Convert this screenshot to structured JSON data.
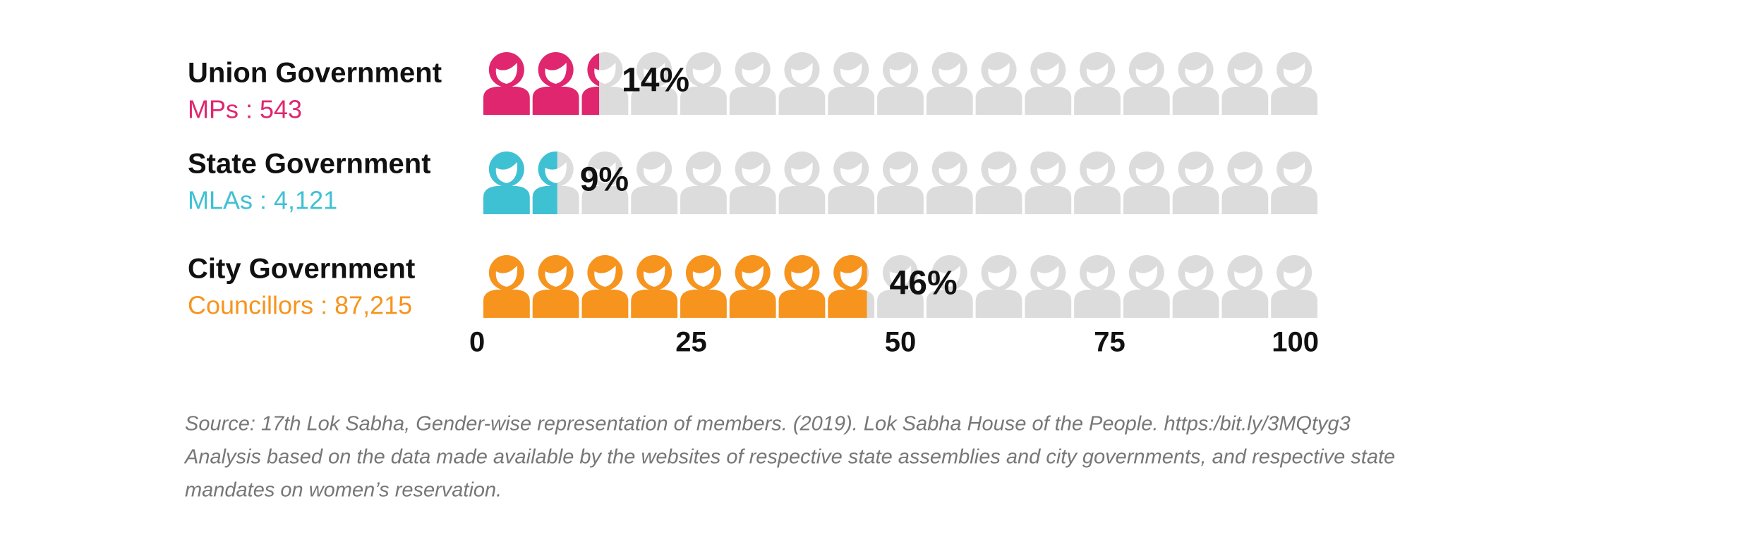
{
  "chart_data": {
    "type": "bar",
    "orientation": "horizontal",
    "categories": [
      "Union Government",
      "State Government",
      "City Government"
    ],
    "sublabels": [
      "MPs : 543",
      "MLAs : 4,121",
      "Councillors : 87,215"
    ],
    "values": [
      14,
      9,
      46
    ],
    "value_labels": [
      "14%",
      "9%",
      "46%"
    ],
    "colors": [
      "#e0266f",
      "#3fc1d4",
      "#f7941d"
    ],
    "xlim": [
      0,
      100
    ],
    "xticks": [
      0,
      25,
      50,
      75,
      100
    ],
    "notes": [
      "Source: 17th Lok Sabha, Gender-wise representation of members. (2019). Lok Sabha House of the People. https:/bit.ly/3MQtyg3",
      "Analysis based on the data made available by the websites of respective state assemblies and city governments, and respective state",
      "mandates on women’s reservation."
    ]
  }
}
